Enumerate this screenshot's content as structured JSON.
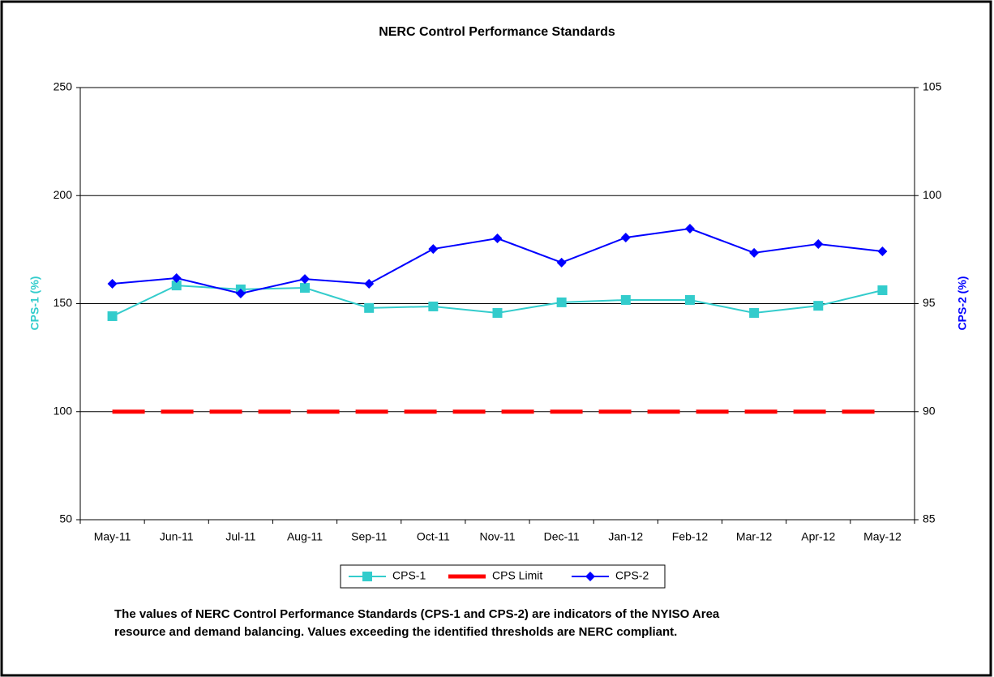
{
  "chart_data": {
    "type": "line",
    "title": "NERC Control Performance Standards",
    "ylabel": "CPS-1 (%)",
    "y2label": "CPS-2 (%)",
    "categories": [
      "May-11",
      "Jun-11",
      "Jul-11",
      "Aug-11",
      "Sep-11",
      "Oct-11",
      "Nov-11",
      "Dec-11",
      "Jan-12",
      "Feb-12",
      "Mar-12",
      "Apr-12",
      "May-12"
    ],
    "series": [
      {
        "name": "CPS-1",
        "color": "#33cccc",
        "marker": "square",
        "values": [
          144.2,
          158.4,
          156.6,
          157.3,
          148,
          148.7,
          145.7,
          150.6,
          151.7,
          151.7,
          145.7,
          149,
          156.2
        ]
      },
      {
        "name": "CPS Limit",
        "color": "#ff0000",
        "dashed": true,
        "values": [
          100,
          100,
          100,
          100,
          100,
          100,
          100,
          100,
          100,
          100,
          100,
          100,
          100
        ]
      },
      {
        "name": "CPS-2",
        "color": "#0000ff",
        "marker": "diamond",
        "axis": "y2",
        "values": [
          95.92,
          96.18,
          95.47,
          96.14,
          95.92,
          97.53,
          98.02,
          96.9,
          98.06,
          98.47,
          97.35,
          97.76,
          97.42
        ]
      }
    ],
    "ylim": [
      50,
      250
    ],
    "yticks": [
      50,
      100,
      150,
      200,
      250
    ],
    "y2lim": [
      85,
      105
    ],
    "y2ticks": [
      85,
      90,
      95,
      100,
      105
    ],
    "grid": true,
    "legend": "bottom",
    "note": [
      "The values of NERC Control Performance Standards (CPS-1 and CPS-2) are indicators of the NYISO Area",
      "resource and demand balancing. Values exceeding the identified thresholds are NERC compliant."
    ]
  }
}
